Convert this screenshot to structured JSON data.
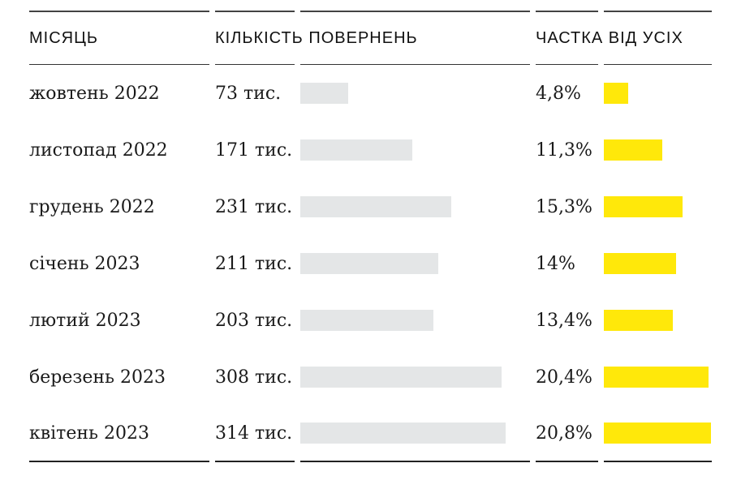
{
  "table": {
    "headers": {
      "month": "МІСЯЦЬ",
      "count": "КІЛЬКІСТЬ ПОВЕРНЕНЬ",
      "share": "ЧАСТКА ВІД УСІХ"
    },
    "rows": [
      {
        "month": "жовтень 2022",
        "count_label": "73 тис.",
        "count": 73,
        "share_label": "4,8%",
        "share": 4.8
      },
      {
        "month": "листопад 2022",
        "count_label": "171 тис.",
        "count": 171,
        "share_label": "11,3%",
        "share": 11.3
      },
      {
        "month": "грудень 2022",
        "count_label": "231 тис.",
        "count": 231,
        "share_label": "15,3%",
        "share": 15.3
      },
      {
        "month": "січень 2023",
        "count_label": "211 тис.",
        "count": 211,
        "share_label": "14%",
        "share": 14
      },
      {
        "month": "лютий 2023",
        "count_label": "203 тис.",
        "count": 203,
        "share_label": "13,4%",
        "share": 13.4
      },
      {
        "month": "березень 2023",
        "count_label": "308 тис.",
        "count": 308,
        "share_label": "20,4%",
        "share": 20.4
      },
      {
        "month": "квітень 2023",
        "count_label": "314 тис.",
        "count": 314,
        "share_label": "20,8%",
        "share": 20.8
      }
    ]
  },
  "colors": {
    "count_bar": "#e4e6e7",
    "share_bar": "#ffe80a",
    "text": "#1a1a1a",
    "rule_top": "#434343",
    "rule_middle": "#333333",
    "rule_bottom": "#222222"
  },
  "chart_data": {
    "type": "table",
    "title": "",
    "columns": [
      "МІСЯЦЬ",
      "КІЛЬКІСТЬ ПОВЕРНЕНЬ",
      "ЧАСТКА ВІД УСІХ"
    ],
    "categories": [
      "жовтень 2022",
      "листопад 2022",
      "грудень 2022",
      "січень 2023",
      "лютий 2023",
      "березень 2023",
      "квітень 2023"
    ],
    "series": [
      {
        "name": "Кількість повернень (тис.)",
        "type": "bar",
        "color": "#e4e6e7",
        "values": [
          73,
          171,
          231,
          211,
          203,
          308,
          314
        ],
        "value_labels": [
          "73 тис.",
          "171 тис.",
          "231 тис.",
          "211 тис.",
          "203 тис.",
          "308 тис.",
          "314 тис."
        ]
      },
      {
        "name": "Частка від усіх (%)",
        "type": "bar",
        "color": "#ffe80a",
        "values": [
          4.8,
          11.3,
          15.3,
          14,
          13.4,
          20.4,
          20.8
        ],
        "value_labels": [
          "4,8%",
          "11,3%",
          "15,3%",
          "14%",
          "13,4%",
          "20,4%",
          "20,8%"
        ]
      }
    ],
    "layout": {
      "bars_normalized_to_max": true,
      "grid": false,
      "legend": "none"
    }
  }
}
